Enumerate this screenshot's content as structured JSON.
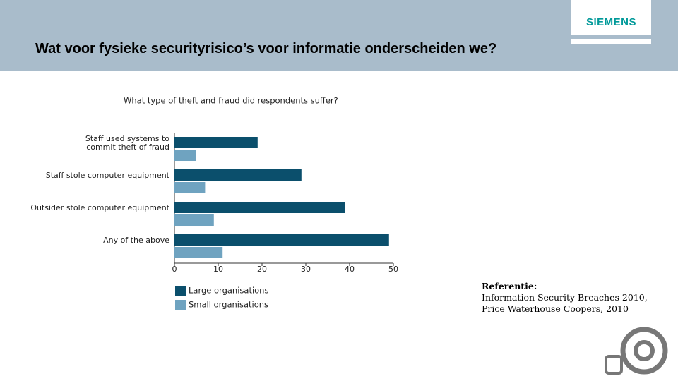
{
  "slide": {
    "title": "Wat voor fysieke securityrisico’s voor informatie onderscheiden we?",
    "logo": "SIEMENS",
    "reference": [
      "Referentie:",
      "Information Security Breaches 2010,",
      "Price Waterhouse Coopers, 2010"
    ]
  },
  "chart_data": {
    "type": "hbar",
    "title": "What type of theft and fraud did respondents suffer?",
    "categories": [
      "Staff used systems to\ncommit theft of fraud",
      "Staff stole computer equipment",
      "Outsider stole computer equipment",
      "Any of the above"
    ],
    "series": [
      {
        "name": "Large organisations",
        "color": "#0b4f6c",
        "values": [
          19,
          29,
          39,
          49
        ]
      },
      {
        "name": "Small organisations",
        "color": "#6fa3c0",
        "values": [
          5,
          7,
          9,
          11
        ]
      }
    ],
    "xlim": [
      0,
      50
    ],
    "xticks": [
      0,
      10,
      20,
      30,
      40,
      50
    ]
  }
}
